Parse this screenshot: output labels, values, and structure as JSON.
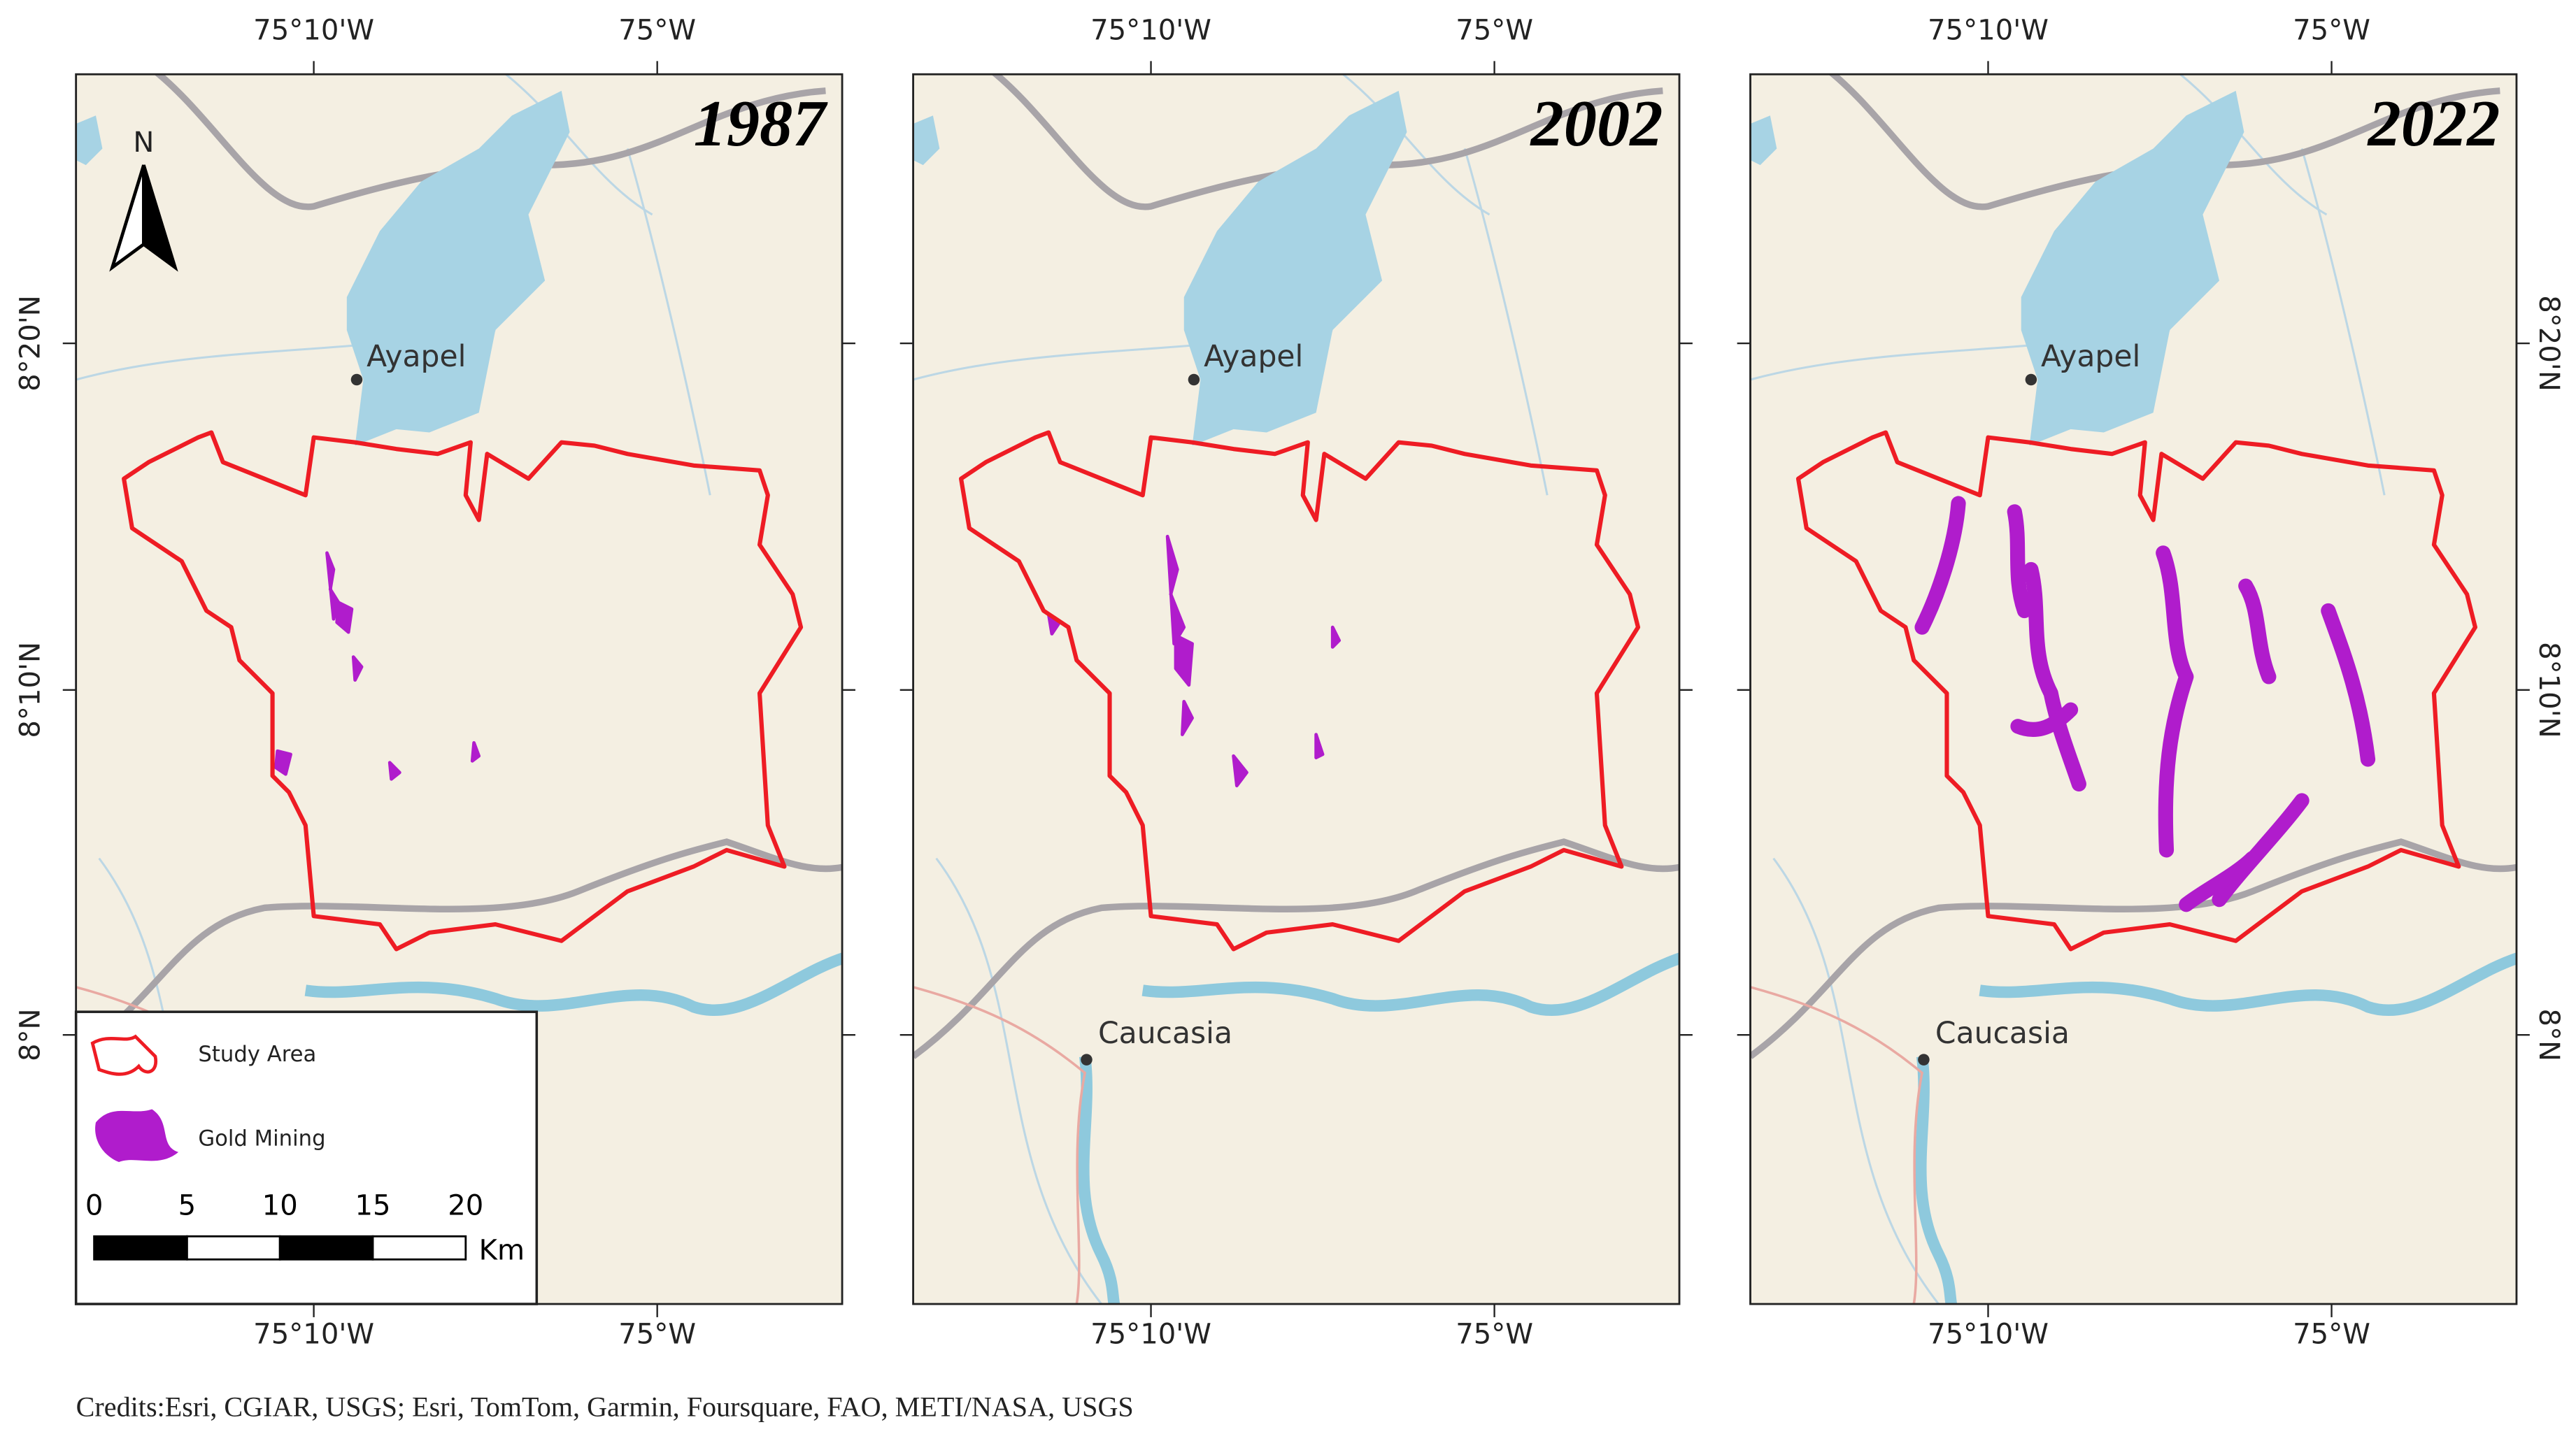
{
  "panels": [
    {
      "year": "1987",
      "places": [
        "Ayapel"
      ]
    },
    {
      "year": "2002",
      "places": [
        "Ayapel",
        "Caucasia"
      ]
    },
    {
      "year": "2022",
      "places": [
        "Ayapel",
        "Caucasia"
      ]
    }
  ],
  "lon_labels": [
    "75°10'W",
    "75°W"
  ],
  "lat_labels": [
    "8°20'N",
    "8°10'N",
    "8°N"
  ],
  "north": "N",
  "legend": {
    "items": [
      "Study Area",
      "Gold Mining"
    ]
  },
  "scale": {
    "ticks": [
      0,
      5,
      10,
      15,
      20
    ],
    "unit": "Km"
  },
  "credits": "Credits:Esri, CGIAR, USGS; Esri, TomTom, Garmin, Foursquare, FAO, METI/NASA, USGS"
}
